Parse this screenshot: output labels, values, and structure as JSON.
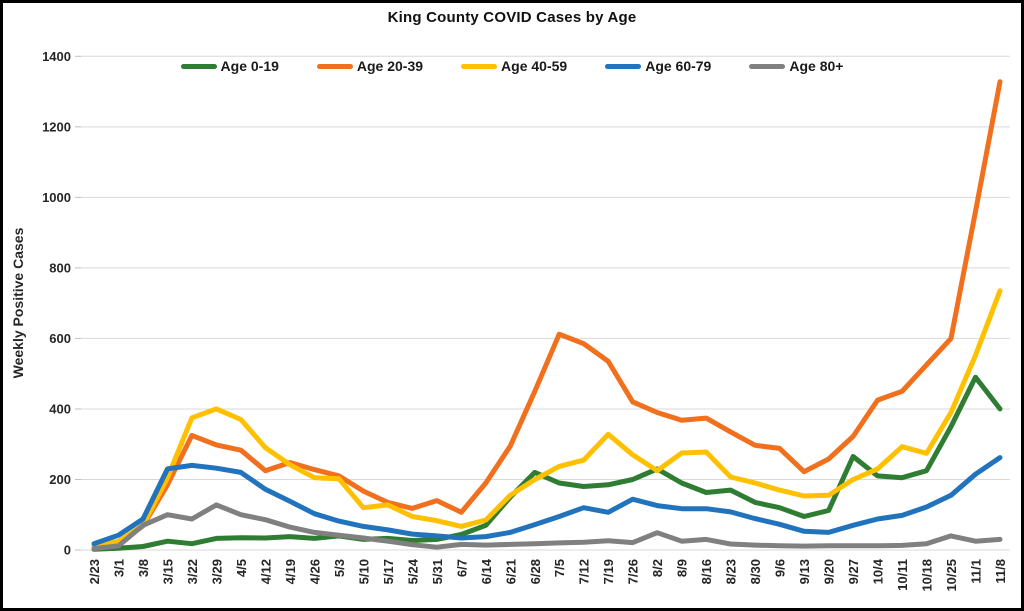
{
  "window": {
    "background": "#ffffff",
    "border_color": "#000000"
  },
  "title": "King County COVID Cases by Age",
  "y_axis_title": "Weekly Positive Cases",
  "colors": {
    "age_0_19": "#2E7D32",
    "age_20_39": "#F0701E",
    "age_40_59": "#FFC000",
    "age_60_79": "#2073BC",
    "age_80_plus": "#808080",
    "gridline": "#D9D9D9",
    "tick": "#BFBFBF",
    "label_text": "#262626"
  },
  "chart_data": {
    "type": "line",
    "title": "King County COVID Cases by Age",
    "xlabel": "",
    "ylabel": "Weekly Positive Cases",
    "ylim": [
      0,
      1400
    ],
    "ytick_interval": 200,
    "grid": true,
    "legend_position": "top",
    "x_labels_rotated_90": true,
    "categories": [
      "2/23",
      "3/1",
      "3/8",
      "3/15",
      "3/22",
      "3/29",
      "4/5",
      "4/12",
      "4/19",
      "4/26",
      "5/3",
      "5/10",
      "5/17",
      "5/24",
      "5/31",
      "6/7",
      "6/14",
      "6/21",
      "6/28",
      "7/5",
      "7/12",
      "7/19",
      "7/26",
      "8/2",
      "8/9",
      "8/16",
      "8/23",
      "8/30",
      "9/6",
      "9/13",
      "9/20",
      "9/27",
      "10/4",
      "10/11",
      "10/18",
      "10/25",
      "11/1",
      "11/8"
    ],
    "series": [
      {
        "name": "Age 0-19",
        "color": "#2E7D32",
        "values": [
          2,
          5,
          10,
          25,
          18,
          33,
          35,
          34,
          38,
          33,
          40,
          30,
          33,
          27,
          30,
          44,
          70,
          150,
          220,
          190,
          180,
          185,
          200,
          230,
          190,
          163,
          170,
          135,
          120,
          95,
          112,
          265,
          210,
          205,
          225,
          350,
          490,
          400
        ]
      },
      {
        "name": "Age 20-39",
        "color": "#F0701E",
        "values": [
          10,
          20,
          68,
          185,
          325,
          298,
          283,
          225,
          248,
          228,
          210,
          167,
          135,
          118,
          140,
          107,
          190,
          295,
          450,
          612,
          585,
          535,
          420,
          390,
          368,
          374,
          335,
          297,
          288,
          222,
          258,
          322,
          425,
          450,
          525,
          600,
          960,
          1328
        ]
      },
      {
        "name": "Age 40-59",
        "color": "#FFC000",
        "values": [
          10,
          25,
          70,
          205,
          375,
          400,
          370,
          290,
          242,
          205,
          202,
          120,
          128,
          95,
          83,
          67,
          85,
          155,
          200,
          237,
          255,
          328,
          270,
          225,
          275,
          278,
          207,
          190,
          170,
          153,
          155,
          200,
          230,
          293,
          274,
          390,
          552,
          735
        ]
      },
      {
        "name": "Age 60-79",
        "color": "#2073BC",
        "values": [
          18,
          42,
          88,
          230,
          240,
          232,
          220,
          172,
          138,
          103,
          82,
          67,
          57,
          45,
          40,
          34,
          38,
          50,
          72,
          95,
          120,
          107,
          144,
          126,
          117,
          117,
          108,
          89,
          73,
          53,
          50,
          70,
          88,
          98,
          122,
          155,
          215,
          262
        ]
      },
      {
        "name": "Age 80+",
        "color": "#808080",
        "values": [
          4,
          12,
          70,
          100,
          88,
          128,
          100,
          86,
          65,
          50,
          42,
          34,
          25,
          15,
          8,
          16,
          14,
          16,
          18,
          20,
          22,
          26,
          21,
          49,
          25,
          30,
          17,
          14,
          12,
          11,
          12,
          12,
          12,
          13,
          18,
          40,
          25,
          30
        ]
      }
    ]
  }
}
